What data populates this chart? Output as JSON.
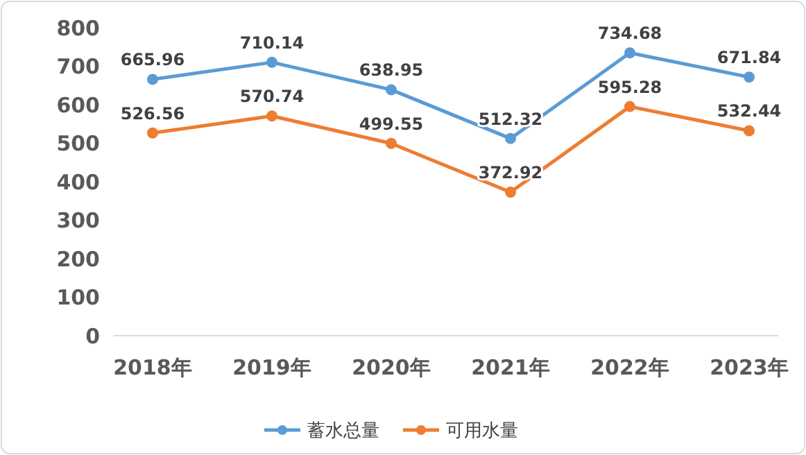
{
  "chart_data": {
    "type": "line",
    "categories": [
      "2018年",
      "2019年",
      "2020年",
      "2021年",
      "2022年",
      "2023年"
    ],
    "series": [
      {
        "name": "蓄水总量",
        "color": "#5b9bd5",
        "values": [
          665.96,
          710.14,
          638.95,
          512.32,
          734.68,
          671.84
        ]
      },
      {
        "name": "可用水量",
        "color": "#ed7d31",
        "values": [
          526.56,
          570.74,
          499.55,
          372.92,
          595.28,
          532.44
        ]
      }
    ],
    "ylim": [
      0,
      800
    ],
    "yticks": [
      0,
      100,
      200,
      300,
      400,
      500,
      600,
      700,
      800
    ],
    "grid": false,
    "legend": "bottom",
    "marker": "circle",
    "line_style": "solid",
    "data_labels": true
  }
}
